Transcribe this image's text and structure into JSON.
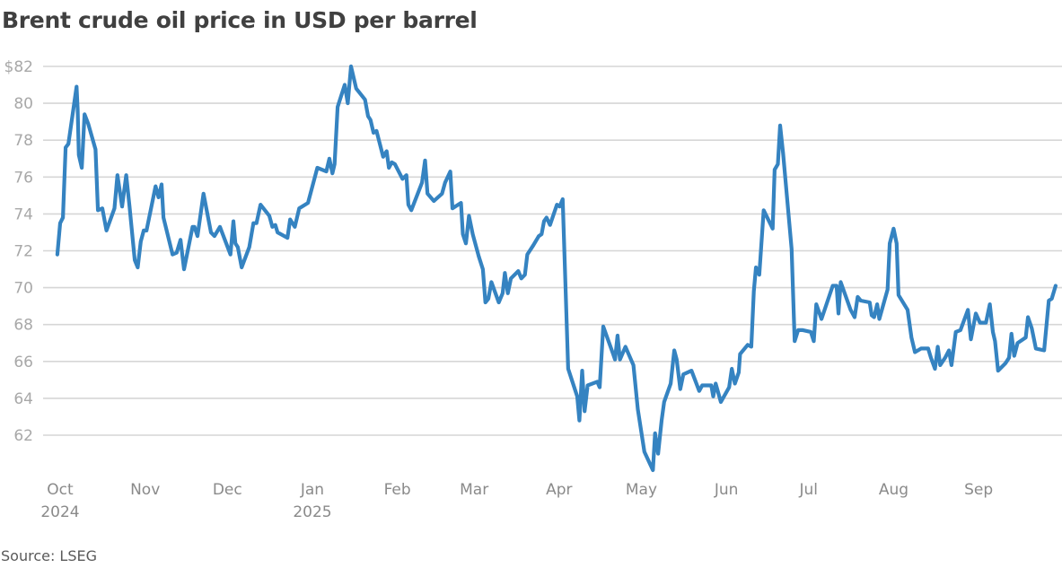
{
  "title": "Brent crude oil price in USD per barrel",
  "source": "Source: LSEG",
  "colors": {
    "line": "#3583c1",
    "grid": "#d6d6d6",
    "title": "#404040"
  },
  "chart_data": {
    "type": "line",
    "title": "Brent crude oil price in USD per barrel",
    "xlabel": "",
    "ylabel": "USD per barrel",
    "ylim": [
      60,
      82
    ],
    "grid": true,
    "legend": null,
    "y_ticks": [
      "$82",
      "80",
      "78",
      "76",
      "74",
      "72",
      "70",
      "68",
      "66",
      "64",
      "62"
    ],
    "y_tick_values": [
      82,
      80,
      78,
      76,
      74,
      72,
      70,
      68,
      66,
      64,
      62
    ],
    "x_ticks": [
      {
        "label": "Oct",
        "sub": "2024"
      },
      {
        "label": "Nov",
        "sub": ""
      },
      {
        "label": "Dec",
        "sub": ""
      },
      {
        "label": "Jan",
        "sub": "2025"
      },
      {
        "label": "Feb",
        "sub": ""
      },
      {
        "label": "Mar",
        "sub": ""
      },
      {
        "label": "Apr",
        "sub": ""
      },
      {
        "label": "May",
        "sub": ""
      },
      {
        "label": "Jun",
        "sub": ""
      },
      {
        "label": "Jul",
        "sub": ""
      },
      {
        "label": "Aug",
        "sub": ""
      },
      {
        "label": "Sep",
        "sub": ""
      }
    ],
    "x_tick_days": [
      0,
      31,
      61,
      92,
      123,
      151,
      182,
      212,
      243,
      273,
      304,
      335
    ],
    "x_unit": "days since 2024-10-01",
    "series": [
      {
        "name": "Brent crude",
        "points": [
          [
            -1,
            71.8
          ],
          [
            0,
            73.5
          ],
          [
            1,
            73.8
          ],
          [
            2,
            77.6
          ],
          [
            3,
            77.8
          ],
          [
            6,
            80.9
          ],
          [
            6.4,
            79.7
          ],
          [
            6.8,
            77.2
          ],
          [
            7.9,
            76.5
          ],
          [
            8.9,
            79.4
          ],
          [
            10.2,
            78.9
          ],
          [
            12.9,
            77.5
          ],
          [
            13.8,
            74.2
          ],
          [
            15.4,
            74.3
          ],
          [
            16.9,
            73.1
          ],
          [
            19.8,
            74.3
          ],
          [
            20.9,
            76.1
          ],
          [
            22.6,
            74.4
          ],
          [
            24.1,
            76.1
          ],
          [
            25.3,
            74.4
          ],
          [
            27.2,
            71.5
          ],
          [
            28.3,
            71.1
          ],
          [
            29.4,
            72.5
          ],
          [
            30.5,
            73.1
          ],
          [
            31.5,
            73.1
          ],
          [
            34.8,
            75.5
          ],
          [
            35.9,
            74.9
          ],
          [
            37.0,
            75.6
          ],
          [
            37.7,
            73.8
          ],
          [
            41.0,
            71.8
          ],
          [
            42.5,
            71.9
          ],
          [
            43.9,
            72.6
          ],
          [
            45.2,
            71.0
          ],
          [
            48.3,
            73.3
          ],
          [
            49.0,
            73.3
          ],
          [
            50.1,
            72.8
          ],
          [
            52.3,
            75.1
          ],
          [
            55.0,
            73.0
          ],
          [
            56.3,
            72.8
          ],
          [
            58.3,
            73.3
          ],
          [
            62.1,
            71.8
          ],
          [
            63.2,
            73.6
          ],
          [
            63.9,
            72.4
          ],
          [
            64.8,
            72.2
          ],
          [
            66.2,
            71.1
          ],
          [
            69.0,
            72.2
          ],
          [
            70.5,
            73.5
          ],
          [
            71.6,
            73.5
          ],
          [
            73.1,
            74.5
          ],
          [
            76.3,
            73.9
          ],
          [
            77.4,
            73.3
          ],
          [
            78.5,
            73.4
          ],
          [
            79.3,
            73.0
          ],
          [
            82.9,
            72.7
          ],
          [
            83.9,
            73.7
          ],
          [
            85.6,
            73.3
          ],
          [
            87.2,
            74.3
          ],
          [
            90.4,
            74.6
          ],
          [
            93.8,
            76.5
          ],
          [
            97.1,
            76.3
          ],
          [
            98.2,
            77.0
          ],
          [
            99.3,
            76.2
          ],
          [
            100.1,
            76.7
          ],
          [
            101.2,
            79.8
          ],
          [
            103.8,
            81.0
          ],
          [
            104.9,
            80.0
          ],
          [
            106.1,
            82.0
          ],
          [
            108.0,
            80.8
          ],
          [
            111.2,
            80.2
          ],
          [
            112.3,
            79.3
          ],
          [
            113.2,
            79.1
          ],
          [
            114.3,
            78.4
          ],
          [
            115.4,
            78.5
          ],
          [
            117.8,
            77.1
          ],
          [
            119.1,
            77.4
          ],
          [
            119.9,
            76.5
          ],
          [
            121.0,
            76.8
          ],
          [
            122.1,
            76.7
          ],
          [
            124.9,
            75.9
          ],
          [
            126.3,
            76.1
          ],
          [
            127.0,
            74.5
          ],
          [
            128.1,
            74.2
          ],
          [
            132.0,
            75.7
          ],
          [
            133.1,
            76.9
          ],
          [
            134.0,
            75.1
          ],
          [
            136.3,
            74.7
          ],
          [
            139.3,
            75.1
          ],
          [
            140.4,
            75.7
          ],
          [
            142.3,
            76.3
          ],
          [
            143.1,
            74.3
          ],
          [
            146.2,
            74.6
          ],
          [
            146.9,
            72.9
          ],
          [
            148.0,
            72.4
          ],
          [
            149.1,
            73.9
          ],
          [
            150.5,
            72.9
          ],
          [
            152.7,
            71.7
          ],
          [
            154.2,
            71.0
          ],
          [
            155.1,
            69.2
          ],
          [
            156.2,
            69.4
          ],
          [
            157.3,
            70.3
          ],
          [
            160.0,
            69.2
          ],
          [
            161.4,
            69.7
          ],
          [
            162.2,
            70.8
          ],
          [
            163.3,
            69.7
          ],
          [
            164.4,
            70.5
          ],
          [
            167.1,
            70.9
          ],
          [
            168.2,
            70.5
          ],
          [
            169.5,
            70.7
          ],
          [
            170.4,
            71.8
          ],
          [
            172.6,
            72.3
          ],
          [
            174.6,
            72.8
          ],
          [
            175.6,
            72.9
          ],
          [
            176.5,
            73.6
          ],
          [
            177.4,
            73.8
          ],
          [
            178.7,
            73.4
          ],
          [
            181.2,
            74.5
          ],
          [
            182.2,
            74.4
          ],
          [
            183.3,
            74.8
          ],
          [
            185.3,
            65.6
          ],
          [
            188.6,
            64.1
          ],
          [
            189.4,
            62.8
          ],
          [
            190.4,
            65.5
          ],
          [
            191.3,
            63.3
          ],
          [
            192.4,
            64.7
          ],
          [
            195.9,
            64.9
          ],
          [
            196.8,
            64.6
          ],
          [
            198.1,
            67.9
          ],
          [
            201.7,
            66.4
          ],
          [
            202.4,
            66.1
          ],
          [
            203.3,
            67.4
          ],
          [
            204.2,
            66.1
          ],
          [
            206.2,
            66.8
          ],
          [
            209.1,
            65.8
          ],
          [
            210.7,
            63.4
          ],
          [
            213.1,
            61.1
          ],
          [
            216.2,
            60.1
          ],
          [
            217.0,
            62.1
          ],
          [
            218.1,
            61.0
          ],
          [
            219.4,
            62.8
          ],
          [
            220.3,
            63.8
          ],
          [
            222.7,
            64.8
          ],
          [
            224.0,
            66.6
          ],
          [
            224.9,
            66.1
          ],
          [
            226.2,
            64.5
          ],
          [
            227.3,
            65.3
          ],
          [
            230.3,
            65.5
          ],
          [
            233.1,
            64.4
          ],
          [
            234.2,
            64.7
          ],
          [
            237.5,
            64.7
          ],
          [
            238.2,
            64.1
          ],
          [
            239.1,
            64.8
          ],
          [
            241.0,
            63.8
          ],
          [
            244.0,
            64.6
          ],
          [
            245.0,
            65.6
          ],
          [
            246.1,
            64.8
          ],
          [
            247.5,
            65.4
          ],
          [
            248.0,
            66.4
          ],
          [
            250.8,
            66.9
          ],
          [
            252.1,
            66.8
          ],
          [
            253.0,
            69.8
          ],
          [
            253.8,
            71.1
          ],
          [
            255.0,
            70.7
          ],
          [
            256.6,
            74.2
          ],
          [
            259.9,
            73.2
          ],
          [
            260.6,
            76.4
          ],
          [
            261.8,
            76.7
          ],
          [
            262.6,
            78.8
          ],
          [
            263.7,
            77.3
          ],
          [
            266.8,
            72.1
          ],
          [
            267.9,
            67.1
          ],
          [
            269.2,
            67.7
          ],
          [
            270.9,
            67.7
          ],
          [
            273.8,
            67.6
          ],
          [
            274.9,
            67.1
          ],
          [
            275.8,
            69.1
          ],
          [
            277.7,
            68.3
          ],
          [
            281.8,
            70.1
          ],
          [
            283.2,
            70.1
          ],
          [
            283.9,
            68.6
          ],
          [
            284.7,
            70.3
          ],
          [
            288.3,
            68.8
          ],
          [
            289.8,
            68.4
          ],
          [
            290.9,
            69.5
          ],
          [
            292.0,
            69.3
          ],
          [
            295.3,
            69.2
          ],
          [
            296.0,
            68.5
          ],
          [
            296.9,
            68.4
          ],
          [
            298.0,
            69.1
          ],
          [
            298.8,
            68.3
          ],
          [
            301.8,
            69.9
          ],
          [
            302.6,
            72.4
          ],
          [
            304.0,
            73.2
          ],
          [
            305.1,
            72.4
          ],
          [
            305.8,
            69.6
          ],
          [
            309.1,
            68.8
          ],
          [
            310.5,
            67.3
          ],
          [
            311.8,
            66.5
          ],
          [
            314.0,
            66.7
          ],
          [
            316.6,
            66.7
          ],
          [
            317.6,
            66.2
          ],
          [
            319.1,
            65.6
          ],
          [
            320.1,
            66.8
          ],
          [
            321.0,
            65.8
          ],
          [
            322.8,
            66.2
          ],
          [
            324.2,
            66.6
          ],
          [
            325.1,
            65.8
          ],
          [
            326.7,
            67.6
          ],
          [
            328.4,
            67.7
          ],
          [
            331.1,
            68.8
          ],
          [
            332.2,
            67.2
          ],
          [
            334.0,
            68.6
          ],
          [
            335.5,
            68.1
          ],
          [
            337.7,
            68.1
          ],
          [
            339.1,
            69.1
          ],
          [
            340.2,
            67.6
          ],
          [
            341.0,
            67.1
          ],
          [
            342.1,
            65.5
          ],
          [
            344.8,
            65.9
          ],
          [
            346.1,
            66.2
          ],
          [
            347.0,
            67.5
          ],
          [
            348.0,
            66.3
          ],
          [
            349.2,
            67.0
          ],
          [
            352.2,
            67.3
          ],
          [
            353.0,
            68.4
          ],
          [
            354.4,
            67.8
          ],
          [
            355.9,
            66.7
          ],
          [
            358.9,
            66.6
          ],
          [
            360.6,
            69.3
          ],
          [
            361.7,
            69.4
          ],
          [
            363.1,
            70.1
          ]
        ]
      }
    ]
  }
}
